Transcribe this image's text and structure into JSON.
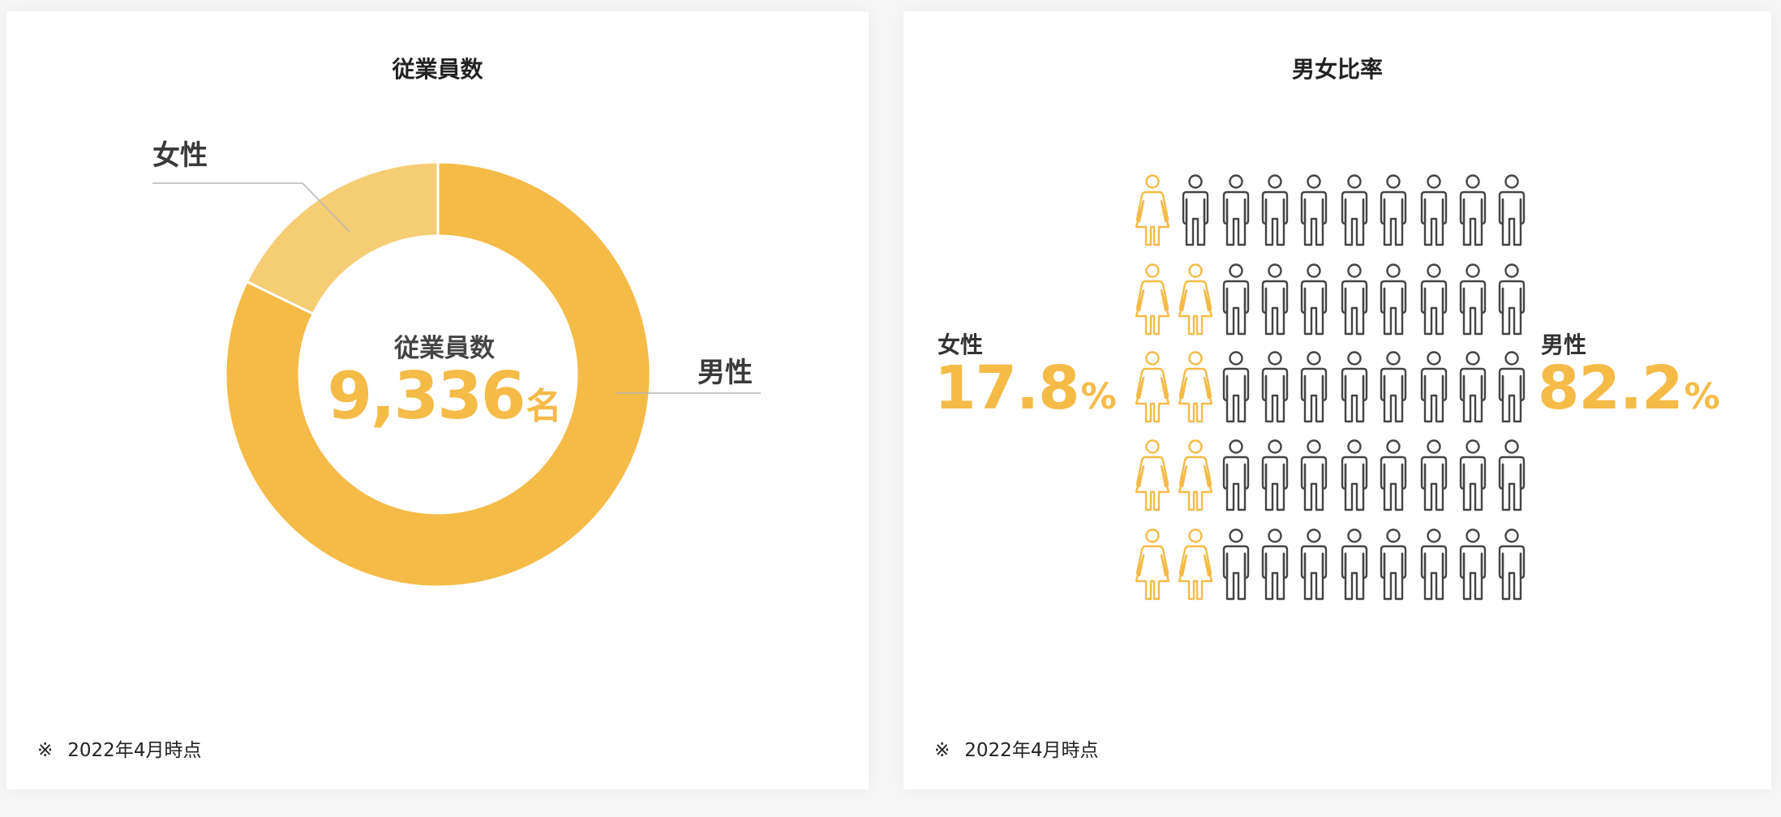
{
  "left_card": {
    "title": "従業員数",
    "center_label": "従業員数",
    "center_value": "9,336",
    "center_unit": "名",
    "labels": {
      "female": "女性",
      "male": "男性"
    },
    "footnote_mark": "※",
    "footnote": "2022年4月時点"
  },
  "right_card": {
    "title": "男女比率",
    "female_label": "女性",
    "female_value": "17.8",
    "male_label": "男性",
    "male_value": "82.2",
    "unit": "%",
    "footnote_mark": "※",
    "footnote": "2022年4月時点"
  },
  "chart_data": [
    {
      "type": "pie",
      "donut": true,
      "title": "従業員数",
      "categories": [
        "男性",
        "女性"
      ],
      "values": [
        82.2,
        17.8
      ],
      "total": 9336,
      "colors": {
        "男性": "#f5bb47",
        "女性": "#f5cd73"
      }
    },
    {
      "type": "pictogram",
      "title": "男女比率",
      "grid": {
        "rows": 5,
        "cols": 10
      },
      "female_counts_per_row": [
        1,
        2,
        2,
        2,
        2
      ],
      "female_icons": 9,
      "male_icons": 41,
      "colors": {
        "female": "#f5bb47",
        "male": "#444444"
      }
    }
  ]
}
